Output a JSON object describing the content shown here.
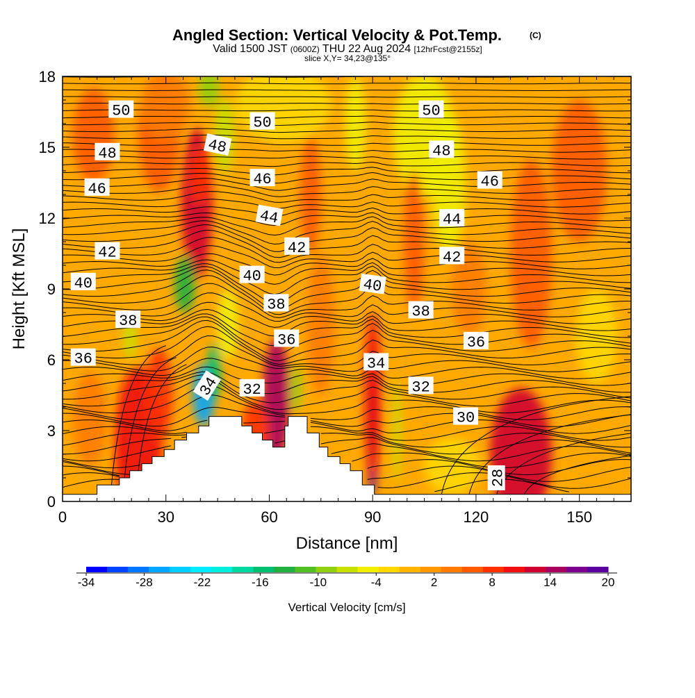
{
  "title": {
    "main": "Angled Section: Vertical Velocity & Pot.Temp.",
    "main_unit": "(C)",
    "valid_a": "Valid 1500 JST ",
    "valid_b": "(0600Z)",
    "valid_c": " THU 22 Aug 2024 ",
    "valid_d": "[12hrFcst@2155z]",
    "slice": "slice X,Y= 34,23@135°"
  },
  "chart_data": {
    "type": "heatmap",
    "description_fields": {
      "fill_variable": "Vertical Velocity [cm/s]",
      "contour_variable": "Pot.Temp. (C)"
    },
    "xlabel": "Distance [nm]",
    "ylabel": "Height [Kft MSL]",
    "xlim": [
      0,
      165
    ],
    "ylim": [
      0,
      18
    ],
    "x_ticks": [
      "0",
      "30",
      "60",
      "90",
      "120",
      "150"
    ],
    "x_tick_values": [
      0,
      30,
      60,
      90,
      120,
      150
    ],
    "y_ticks": [
      "0",
      "3",
      "6",
      "9",
      "12",
      "15",
      "18"
    ],
    "y_tick_values": [
      0,
      3,
      6,
      9,
      12,
      15,
      18
    ],
    "terrain": [
      [
        0,
        0.3
      ],
      [
        10,
        0.3
      ],
      [
        10,
        0.7
      ],
      [
        16.5,
        0.7
      ],
      [
        16.5,
        1.0
      ],
      [
        19.5,
        1.0
      ],
      [
        19.5,
        1.3
      ],
      [
        23,
        1.3
      ],
      [
        23,
        1.6
      ],
      [
        26,
        1.6
      ],
      [
        26,
        1.9
      ],
      [
        29.5,
        1.9
      ],
      [
        29.5,
        2.2
      ],
      [
        32.5,
        2.2
      ],
      [
        32.5,
        2.6
      ],
      [
        36,
        2.6
      ],
      [
        36,
        2.9
      ],
      [
        39.5,
        2.9
      ],
      [
        39.5,
        3.2
      ],
      [
        42.5,
        3.2
      ],
      [
        42.5,
        3.6
      ],
      [
        52,
        3.6
      ],
      [
        52,
        3.2
      ],
      [
        55,
        3.2
      ],
      [
        55,
        2.9
      ],
      [
        58,
        2.9
      ],
      [
        58,
        2.6
      ],
      [
        61,
        2.6
      ],
      [
        61,
        2.3
      ],
      [
        64.5,
        2.3
      ],
      [
        64.5,
        3.2
      ],
      [
        65.5,
        3.2
      ],
      [
        65.5,
        3.6
      ],
      [
        71,
        3.6
      ],
      [
        71,
        2.9
      ],
      [
        74.5,
        2.9
      ],
      [
        74.5,
        2.3
      ],
      [
        77,
        2.3
      ],
      [
        77,
        1.9
      ],
      [
        80.5,
        1.9
      ],
      [
        80.5,
        1.6
      ],
      [
        83.5,
        1.6
      ],
      [
        83.5,
        1.3
      ],
      [
        87,
        1.3
      ],
      [
        87,
        0.7
      ],
      [
        90.5,
        0.7
      ],
      [
        90.5,
        0.3
      ],
      [
        165,
        0.3
      ]
    ],
    "contour_labels": [
      {
        "text": "50",
        "x": 17,
        "y": 16.6,
        "rot": 0
      },
      {
        "text": "50",
        "x": 58,
        "y": 16.1,
        "rot": 0
      },
      {
        "text": "50",
        "x": 107,
        "y": 16.6,
        "rot": 0
      },
      {
        "text": "48",
        "x": 13,
        "y": 14.8,
        "rot": 0
      },
      {
        "text": "48",
        "x": 45,
        "y": 15.1,
        "rot": 12
      },
      {
        "text": "48",
        "x": 110,
        "y": 14.9,
        "rot": 0
      },
      {
        "text": "46",
        "x": 10,
        "y": 13.3,
        "rot": 0
      },
      {
        "text": "46",
        "x": 58,
        "y": 13.7,
        "rot": 0
      },
      {
        "text": "46",
        "x": 124,
        "y": 13.6,
        "rot": 0
      },
      {
        "text": "44",
        "x": 60,
        "y": 12.1,
        "rot": 10
      },
      {
        "text": "44",
        "x": 113,
        "y": 12.0,
        "rot": 0
      },
      {
        "text": "42",
        "x": 13,
        "y": 10.6,
        "rot": 0
      },
      {
        "text": "42",
        "x": 68,
        "y": 10.8,
        "rot": 0
      },
      {
        "text": "42",
        "x": 113,
        "y": 10.4,
        "rot": 0
      },
      {
        "text": "40",
        "x": 6,
        "y": 9.3,
        "rot": 0
      },
      {
        "text": "40",
        "x": 55,
        "y": 9.6,
        "rot": 0
      },
      {
        "text": "40",
        "x": 90,
        "y": 9.2,
        "rot": 8
      },
      {
        "text": "38",
        "x": 19,
        "y": 7.7,
        "rot": 0
      },
      {
        "text": "38",
        "x": 62,
        "y": 8.4,
        "rot": 0
      },
      {
        "text": "38",
        "x": 104,
        "y": 8.1,
        "rot": 0
      },
      {
        "text": "36",
        "x": 6,
        "y": 6.1,
        "rot": 0
      },
      {
        "text": "36",
        "x": 65,
        "y": 6.9,
        "rot": 0
      },
      {
        "text": "36",
        "x": 120,
        "y": 6.8,
        "rot": 0
      },
      {
        "text": "34",
        "x": 42,
        "y": 4.9,
        "rot": -58
      },
      {
        "text": "34",
        "x": 91,
        "y": 5.9,
        "rot": 0
      },
      {
        "text": "32",
        "x": 55,
        "y": 4.8,
        "rot": 0
      },
      {
        "text": "32",
        "x": 104,
        "y": 4.9,
        "rot": 0
      },
      {
        "text": "30",
        "x": 117,
        "y": 3.6,
        "rot": 0
      },
      {
        "text": "28",
        "x": 126,
        "y": 1.0,
        "rot": -90
      }
    ],
    "velocity_features": [
      {
        "x": 22,
        "y": 2.5,
        "rx": 7,
        "ry": 3.2,
        "w": 10
      },
      {
        "x": 28,
        "y": 4.5,
        "rx": 4,
        "ry": 2.0,
        "w": 8
      },
      {
        "x": 39,
        "y": 12.6,
        "rx": 4.5,
        "ry": 3.2,
        "w": 12
      },
      {
        "x": 40,
        "y": 13.8,
        "rx": 3,
        "ry": 1.2,
        "w": 9
      },
      {
        "x": 28,
        "y": 15.5,
        "rx": 6,
        "ry": 2.4,
        "w": 5
      },
      {
        "x": 30,
        "y": 16.8,
        "rx": 7,
        "ry": 1.5,
        "w": 3
      },
      {
        "x": 42.5,
        "y": 17.5,
        "rx": 3,
        "ry": 0.8,
        "w": -9
      },
      {
        "x": 47,
        "y": 15.5,
        "rx": 3,
        "ry": 1.6,
        "w": -6
      },
      {
        "x": 35.5,
        "y": 9.2,
        "rx": 3,
        "ry": 1.2,
        "w": -14
      },
      {
        "x": 19.5,
        "y": 7.0,
        "rx": 2,
        "ry": 1.0,
        "w": -6
      },
      {
        "x": 41,
        "y": 4.5,
        "rx": 3.2,
        "ry": 1.3,
        "w": -26
      },
      {
        "x": 44,
        "y": 5.5,
        "rx": 2,
        "ry": 1.2,
        "w": -16
      },
      {
        "x": 62,
        "y": 4.3,
        "rx": 4,
        "ry": 2.6,
        "w": 14
      },
      {
        "x": 56,
        "y": 3.0,
        "rx": 4,
        "ry": 1.3,
        "w": 9
      },
      {
        "x": 68,
        "y": 4.8,
        "rx": 1.4,
        "ry": 1.0,
        "w": -10
      },
      {
        "x": 90,
        "y": 2.8,
        "rx": 1.6,
        "ry": 2.6,
        "w": 20
      },
      {
        "x": 90,
        "y": 4.5,
        "rx": 2.4,
        "ry": 3.5,
        "w": 10
      },
      {
        "x": 133,
        "y": 2.0,
        "rx": 9,
        "ry": 2.8,
        "w": 13
      },
      {
        "x": 105,
        "y": 15.5,
        "rx": 9,
        "ry": 2.6,
        "w": -5
      },
      {
        "x": 64,
        "y": 16.8,
        "rx": 14,
        "ry": 1.6,
        "w": -3
      },
      {
        "x": 112,
        "y": 13.5,
        "rx": 5,
        "ry": 3.0,
        "w": -4
      },
      {
        "x": 102,
        "y": 11.0,
        "rx": 3,
        "ry": 3.0,
        "w": 6
      },
      {
        "x": 136,
        "y": 10.5,
        "rx": 6,
        "ry": 4.0,
        "w": 5
      },
      {
        "x": 9,
        "y": 15.5,
        "rx": 6,
        "ry": 2.0,
        "w": 6
      },
      {
        "x": 48,
        "y": 7.5,
        "rx": 3,
        "ry": 1.5,
        "w": -5
      },
      {
        "x": 75,
        "y": 7.5,
        "rx": 4,
        "ry": 3.0,
        "w": 4
      },
      {
        "x": 97,
        "y": 3.0,
        "rx": 1.2,
        "ry": 2.2,
        "w": -8
      },
      {
        "x": 150,
        "y": 14.0,
        "rx": 8,
        "ry": 3.0,
        "w": 5
      },
      {
        "x": 155,
        "y": 7.0,
        "rx": 6,
        "ry": 2.0,
        "w": -3
      },
      {
        "x": 113,
        "y": 1.5,
        "rx": 8,
        "ry": 1.2,
        "w": -3
      },
      {
        "x": 72,
        "y": 13.0,
        "rx": 3,
        "ry": 2.5,
        "w": 5
      },
      {
        "x": 85,
        "y": 16.0,
        "rx": 3,
        "ry": 2.0,
        "w": -4
      },
      {
        "x": 118,
        "y": 9.0,
        "rx": 5,
        "ry": 2.0,
        "w": 4
      },
      {
        "x": 8,
        "y": 3.5,
        "rx": 5,
        "ry": 2.0,
        "w": 4
      }
    ],
    "colorbar": {
      "label": "Vertical Velocity [cm/s]",
      "ticks": [
        "-34",
        "-28",
        "-22",
        "-16",
        "-10",
        "-4",
        "2",
        "8",
        "14",
        "20"
      ],
      "colors": [
        "#0000ff",
        "#0044ff",
        "#0077ff",
        "#00a6ff",
        "#00cfff",
        "#00eeff",
        "#00eedd",
        "#00d8a0",
        "#00c070",
        "#20b040",
        "#50c020",
        "#90d010",
        "#c8e000",
        "#f0f000",
        "#ffd800",
        "#ffb400",
        "#ff9800",
        "#ff7c00",
        "#ff5a00",
        "#ff3000",
        "#f01010",
        "#d00030",
        "#a80060",
        "#7a0090",
        "#5a00a0"
      ]
    }
  }
}
